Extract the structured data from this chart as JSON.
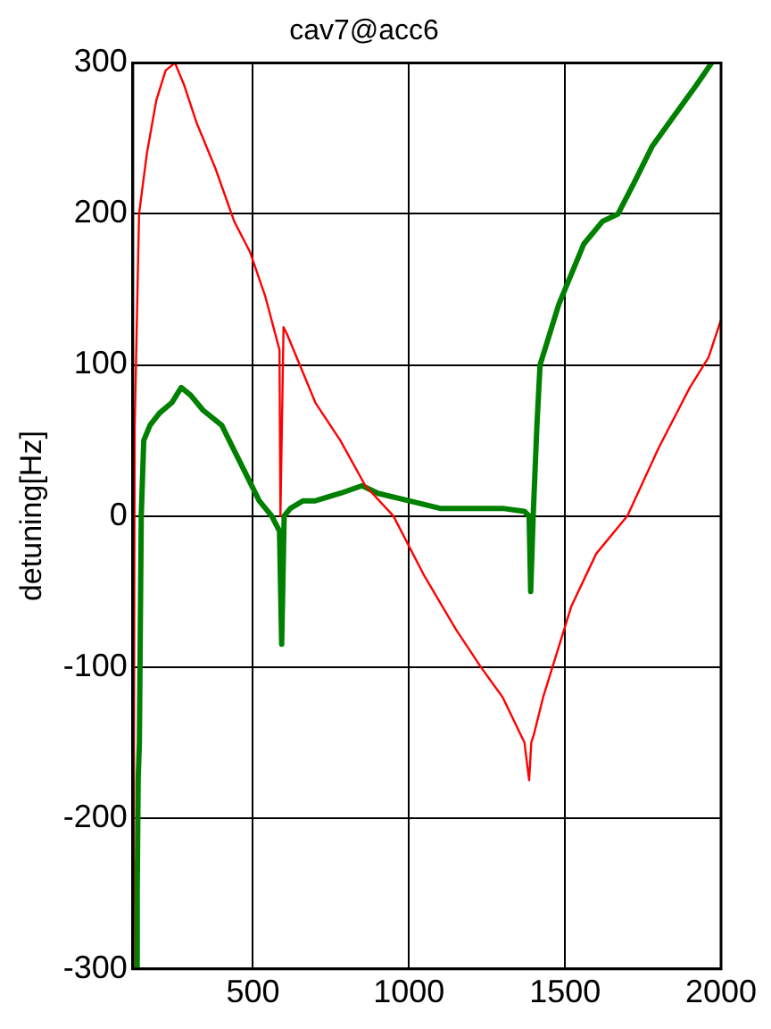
{
  "chart_data": {
    "type": "line",
    "title": "cav7@acc6",
    "ylabel": "detuning[Hz]",
    "xlim": [
      115,
      2000
    ],
    "xticks": [
      500,
      1000,
      1500,
      2000
    ],
    "ylim": [
      -300,
      300
    ],
    "yticks": [
      -300,
      -200,
      -100,
      0,
      100,
      200,
      300
    ],
    "grid": true,
    "legend": false,
    "marker": "none",
    "series": [
      {
        "color": "#ff0000",
        "x": [
          117,
          121,
          135,
          160,
          190,
          220,
          250,
          280,
          320,
          380,
          440,
          490,
          540,
          585,
          588,
          592,
          598,
          610,
          650,
          700,
          780,
          860,
          950,
          1050,
          1150,
          1230,
          1300,
          1370,
          1385,
          1392,
          1400,
          1430,
          1460,
          1520,
          1600,
          1700,
          1800,
          1900,
          1960,
          2000
        ],
        "values": [
          -300,
          60,
          200,
          240,
          275,
          295,
          300,
          285,
          260,
          230,
          195,
          175,
          145,
          110,
          0,
          0,
          125,
          120,
          100,
          75,
          50,
          20,
          0,
          -40,
          -75,
          -100,
          -120,
          -150,
          -175,
          -150,
          -145,
          -120,
          -100,
          -60,
          -25,
          0,
          45,
          85,
          105,
          130
        ]
      },
      {
        "color": "#008000",
        "x": [
          126,
          129,
          132,
          136,
          142,
          150,
          170,
          200,
          240,
          270,
          300,
          340,
          400,
          460,
          520,
          560,
          585,
          592,
          600,
          620,
          660,
          700,
          780,
          850,
          900,
          1000,
          1100,
          1200,
          1300,
          1370,
          1385,
          1390,
          1398,
          1410,
          1420,
          1480,
          1560,
          1620,
          1670,
          1720,
          1780,
          1850,
          1920,
          1970
        ],
        "values": [
          -300,
          -250,
          -175,
          -150,
          0,
          50,
          60,
          68,
          75,
          85,
          80,
          70,
          60,
          35,
          10,
          0,
          -10,
          -85,
          0,
          5,
          10,
          10,
          15,
          20,
          15,
          10,
          5,
          5,
          5,
          3,
          0,
          -50,
          0,
          60,
          100,
          140,
          180,
          195,
          200,
          220,
          245,
          265,
          285,
          300
        ]
      }
    ]
  }
}
